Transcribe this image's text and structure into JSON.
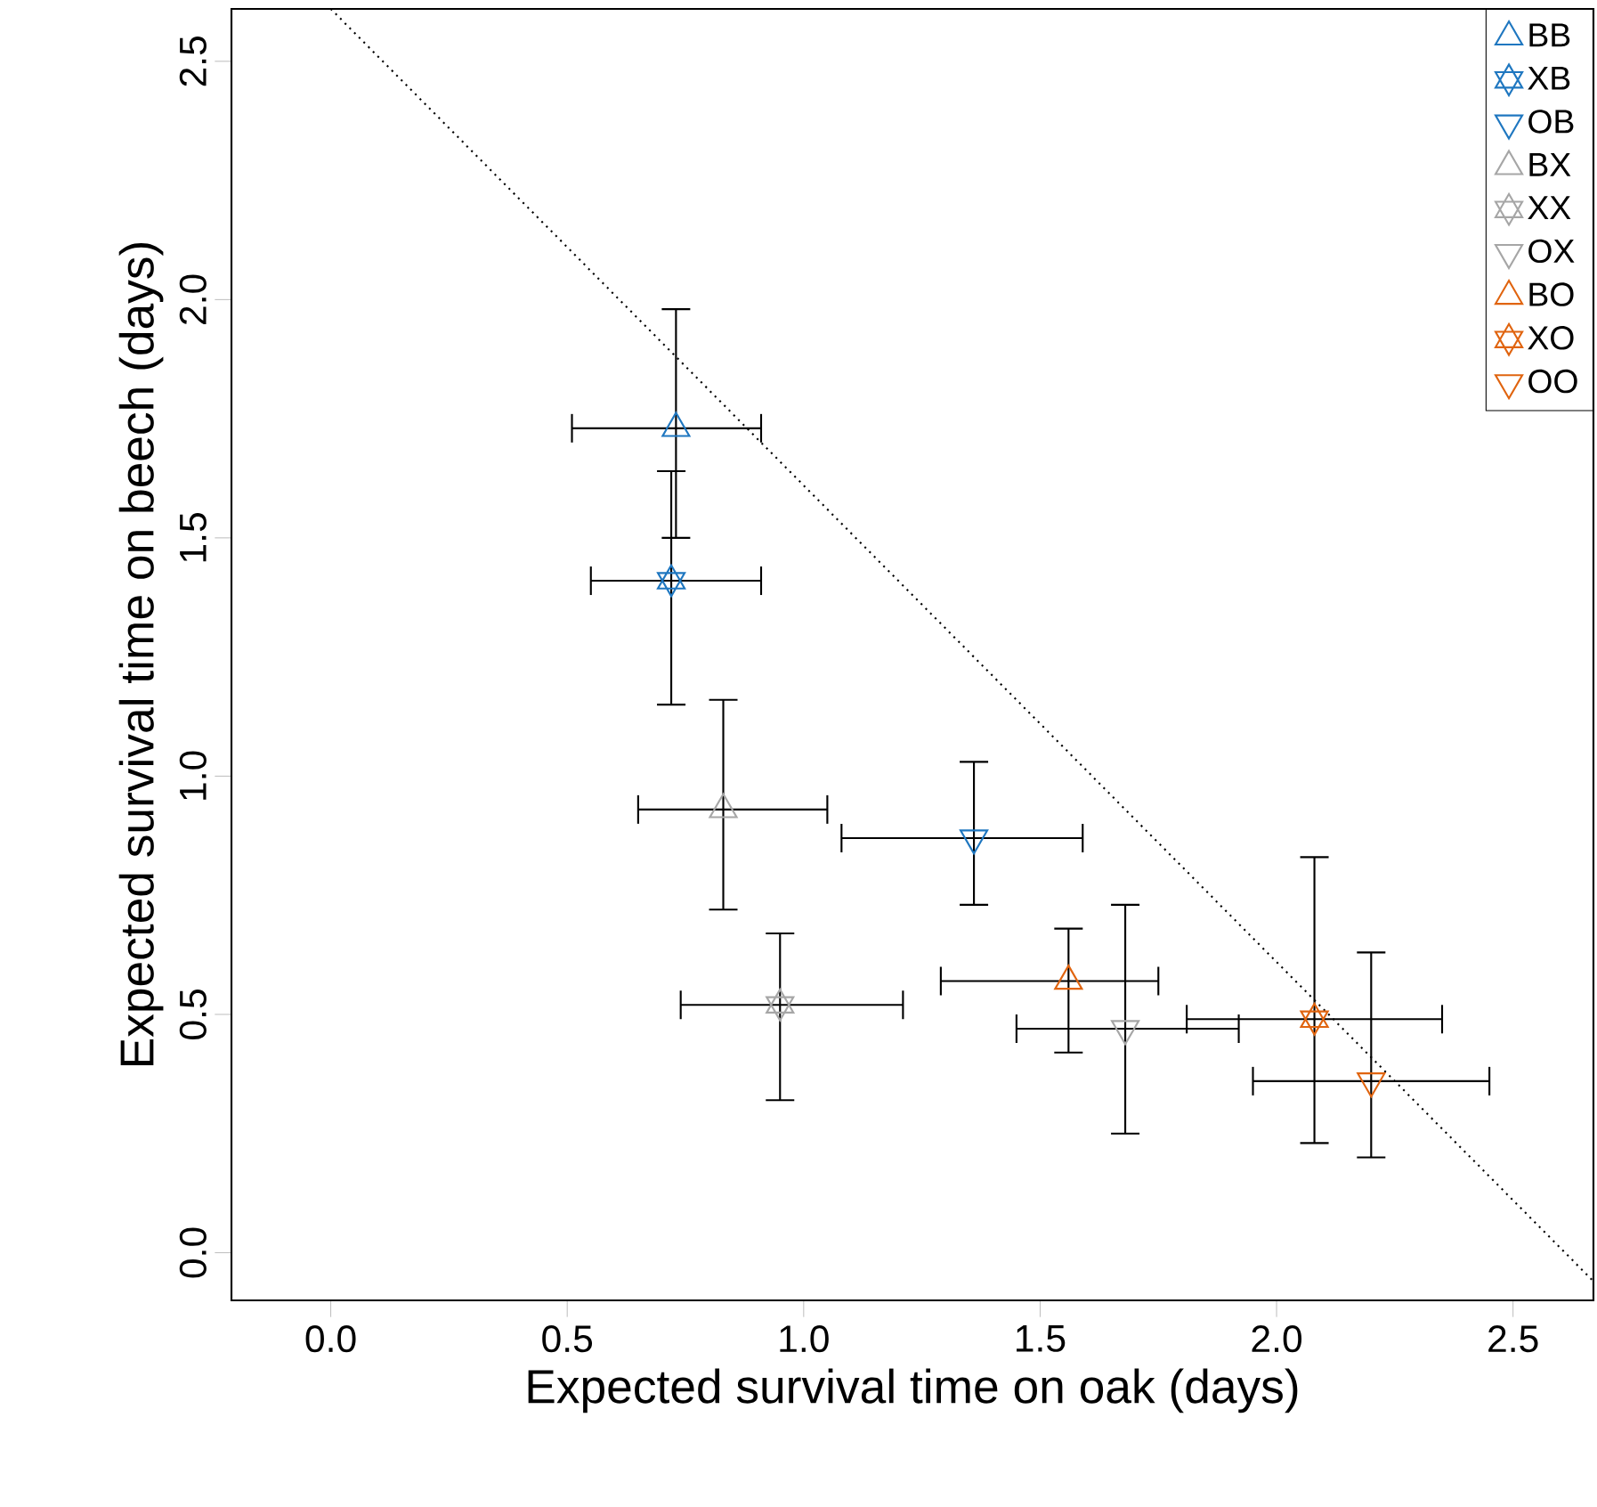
{
  "chart_data": {
    "type": "scatter",
    "xlabel": "Expected survival time on oak (days)",
    "ylabel": "Expected survival time on beech (days)",
    "xlim": [
      -0.21,
      2.67
    ],
    "ylim": [
      -0.1,
      2.61
    ],
    "xticks": [
      {
        "value": 0,
        "label": "0.0"
      },
      0.5,
      {
        "value": 1,
        "label": "1.0"
      },
      1.5,
      {
        "value": 2,
        "label": "2.0"
      },
      2.5
    ],
    "yticks": [
      {
        "value": 0,
        "label": "0.0"
      },
      0.5,
      {
        "value": 1,
        "label": "1.0"
      },
      1.5,
      {
        "value": 2,
        "label": "2.0"
      },
      2.5
    ],
    "grid": false,
    "legend": "top right",
    "series": [
      {
        "name": "BB",
        "color": "#1f77c0",
        "marker": "triangle",
        "x": [
          0.73
        ],
        "values": [
          1.73
        ],
        "xerrors": [
          [
            0.51,
            0.91
          ]
        ],
        "errors": [
          [
            1.5,
            1.98
          ]
        ]
      },
      {
        "name": "XB",
        "color": "#1f77c0",
        "marker": "cross",
        "x": [
          0.72
        ],
        "values": [
          1.41
        ],
        "xerrors": [
          [
            0.55,
            0.91
          ]
        ],
        "errors": [
          [
            1.15,
            1.64
          ]
        ]
      },
      {
        "name": "OB",
        "color": "#1f77c0",
        "marker": "triangle down",
        "x": [
          1.36
        ],
        "values": [
          0.87
        ],
        "xerrors": [
          [
            1.08,
            1.59
          ]
        ],
        "errors": [
          [
            0.73,
            1.03
          ]
        ]
      },
      {
        "name": "BX",
        "color": "#a6a6a6",
        "marker": "triangle",
        "x": [
          0.83
        ],
        "values": [
          0.93
        ],
        "xerrors": [
          [
            0.65,
            1.05
          ]
        ],
        "errors": [
          [
            0.72,
            1.16
          ]
        ]
      },
      {
        "name": "XX",
        "color": "#a6a6a6",
        "marker": "cross",
        "x": [
          0.95
        ],
        "values": [
          0.52
        ],
        "xerrors": [
          [
            0.74,
            1.21
          ]
        ],
        "errors": [
          [
            0.32,
            0.67
          ]
        ]
      },
      {
        "name": "OX",
        "color": "#a6a6a6",
        "marker": "triangle down",
        "x": [
          1.68
        ],
        "values": [
          0.47
        ],
        "xerrors": [
          [
            1.45,
            1.92
          ]
        ],
        "errors": [
          [
            0.25,
            0.73
          ]
        ]
      },
      {
        "name": "BO",
        "color": "#e0640f",
        "marker": "triangle",
        "x": [
          1.56
        ],
        "values": [
          0.57
        ],
        "xerrors": [
          [
            1.29,
            1.75
          ]
        ],
        "errors": [
          [
            0.42,
            0.68
          ]
        ]
      },
      {
        "name": "XO",
        "color": "#e0640f",
        "marker": "cross",
        "x": [
          2.08
        ],
        "values": [
          0.49
        ],
        "xerrors": [
          [
            1.81,
            2.35
          ]
        ],
        "errors": [
          [
            0.23,
            0.83
          ]
        ]
      },
      {
        "name": "OO",
        "color": "#e0640f",
        "marker": "triangle down",
        "x": [
          2.2
        ],
        "values": [
          0.36
        ],
        "xerrors": [
          [
            1.95,
            2.45
          ]
        ],
        "errors": [
          [
            0.2,
            0.63
          ]
        ]
      },
      {
        "type": "line",
        "color": "#000000",
        "line_style": "dotted",
        "marker": "none",
        "x": [
          0,
          2.67
        ],
        "values": [
          2.61,
          -0.06
        ]
      }
    ]
  }
}
